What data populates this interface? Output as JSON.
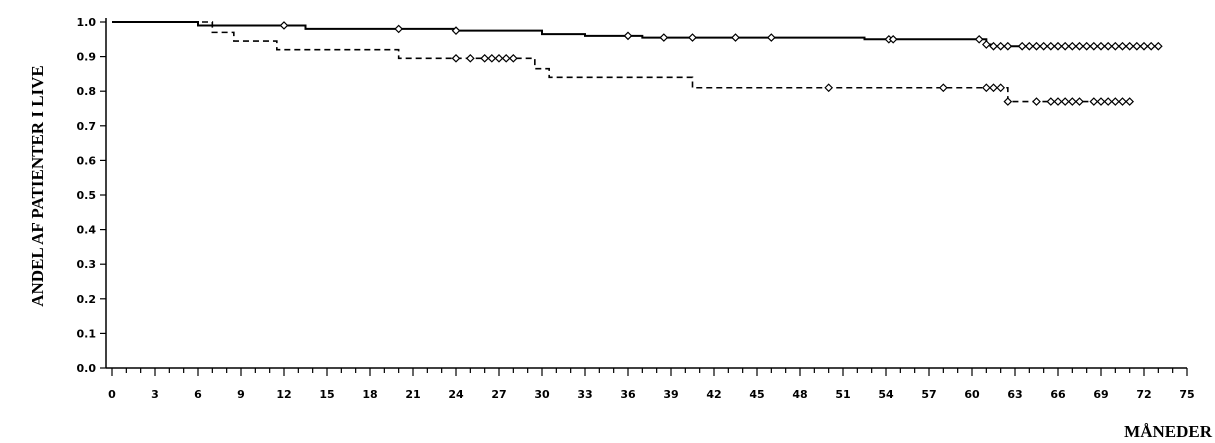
{
  "chart_data": {
    "type": "line",
    "step": true,
    "title": "",
    "xlabel": "MÅNEDER",
    "ylabel": "ANDEL AF PATIENTER I LIVE",
    "xlim": [
      0,
      75
    ],
    "ylim": [
      0,
      1.0
    ],
    "x_ticks": [
      "0",
      "3",
      "6",
      "9",
      "12",
      "15",
      "18",
      "21",
      "24",
      "27",
      "30",
      "33",
      "36",
      "39",
      "42",
      "45",
      "48",
      "51",
      "54",
      "57",
      "60",
      "63",
      "66",
      "69",
      "72",
      "75"
    ],
    "y_ticks": [
      "0.0",
      "0.1",
      "0.2",
      "0.3",
      "0.4",
      "0.5",
      "0.6",
      "0.7",
      "0.8",
      "0.9",
      "1.0"
    ],
    "grid": false,
    "series": [
      {
        "style": "solid",
        "color": "#000000",
        "steps": [
          [
            0,
            1.0
          ],
          [
            6,
            0.99
          ],
          [
            13.5,
            0.98
          ],
          [
            24,
            0.975
          ],
          [
            30,
            0.965
          ],
          [
            33,
            0.96
          ],
          [
            37,
            0.955
          ],
          [
            48,
            0.955
          ],
          [
            52.5,
            0.95
          ],
          [
            61,
            0.935
          ],
          [
            61.5,
            0.93
          ],
          [
            73,
            0.93
          ]
        ],
        "censored": [
          12,
          20,
          24,
          36,
          38.5,
          40.5,
          43.5,
          46,
          54.2,
          54.5,
          60.5,
          61,
          61.5,
          62,
          62.5,
          63.5,
          64,
          64.5,
          65,
          65.5,
          66,
          66.5,
          67,
          67.5,
          68,
          68.5,
          69,
          69.5,
          70,
          70.5,
          71,
          71.5,
          72,
          72.5,
          73
        ]
      },
      {
        "style": "dashed",
        "color": "#000000",
        "steps": [
          [
            0,
            1.0
          ],
          [
            7,
            0.97
          ],
          [
            8.5,
            0.945
          ],
          [
            11.5,
            0.92
          ],
          [
            20,
            0.895
          ],
          [
            29.5,
            0.865
          ],
          [
            30.5,
            0.84
          ],
          [
            40.5,
            0.81
          ],
          [
            62.5,
            0.77
          ],
          [
            71,
            0.77
          ]
        ],
        "censored": [
          24,
          25,
          26,
          26.5,
          27,
          27.5,
          28,
          50,
          58,
          61,
          61.5,
          62,
          62.5,
          64.5,
          65.5,
          66,
          66.5,
          67,
          67.5,
          68.5,
          69,
          69.5,
          70,
          70.5,
          71
        ]
      }
    ]
  }
}
